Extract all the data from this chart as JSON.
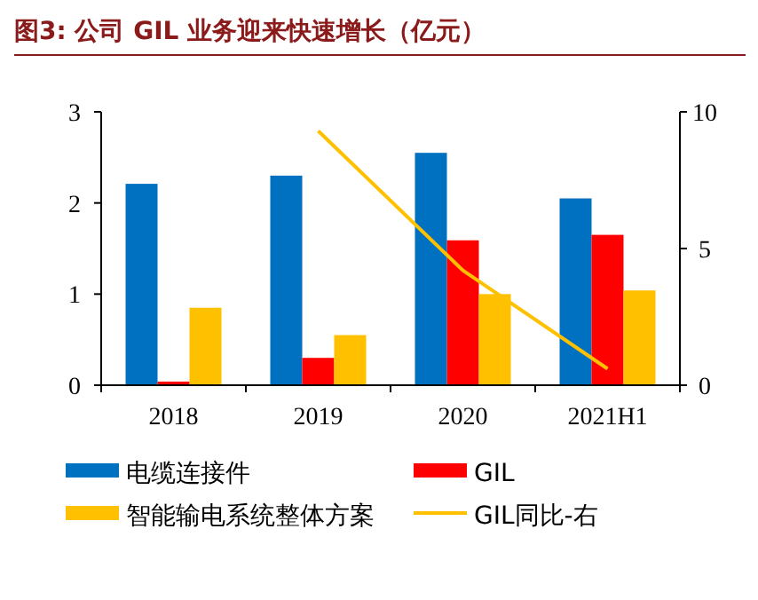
{
  "chart_data": {
    "type": "bar",
    "title": "图3: 公司 GIL 业务迎来快速增长（亿元）",
    "categories": [
      "2018",
      "2019",
      "2020",
      "2021H1"
    ],
    "series": [
      {
        "name": "电缆连接件",
        "color": "#0070c0",
        "values": [
          2.21,
          2.3,
          2.55,
          2.05
        ]
      },
      {
        "name": "GIL",
        "color": "#ff0000",
        "values": [
          0.04,
          0.3,
          1.59,
          1.65
        ]
      },
      {
        "name": "智能输电系统整体方案",
        "color": "#ffc000",
        "values": [
          0.85,
          0.55,
          1.0,
          1.04
        ]
      },
      {
        "name": "GIL同比-右",
        "type": "line",
        "axis": "y2",
        "color": "#ffc000",
        "values": [
          null,
          9.3,
          4.2,
          0.6
        ]
      }
    ],
    "ylim": [
      0,
      3
    ],
    "yticks": [
      0,
      1,
      2,
      3
    ],
    "y2lim": [
      0,
      10
    ],
    "y2ticks": [
      0,
      5,
      10
    ],
    "grid": false,
    "legend": "bottom"
  }
}
